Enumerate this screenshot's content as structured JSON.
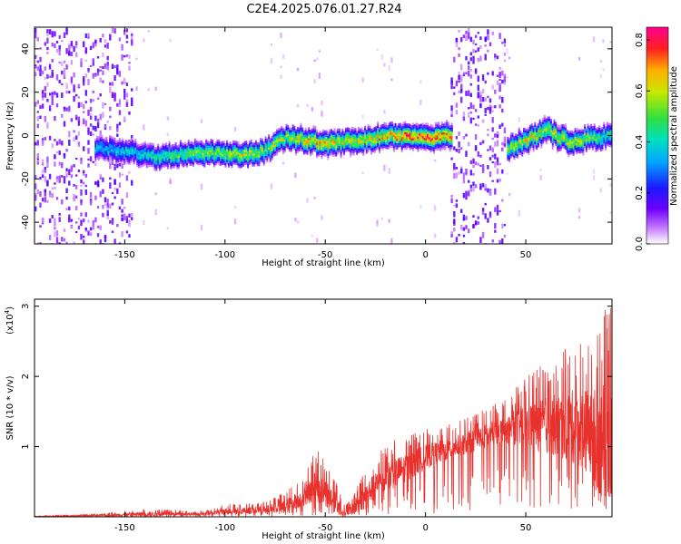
{
  "title": "C2E4.2025.076.01.27.R24",
  "chart_data": [
    {
      "type": "heatmap",
      "xlabel": "Height of straight line (km)",
      "ylabel": "Frequency (Hz)",
      "xlim": [
        -195,
        93
      ],
      "ylim": [
        -50,
        50
      ],
      "xticks": [
        -150,
        -100,
        -50,
        0,
        50
      ],
      "yticks": [
        -40,
        -20,
        0,
        20,
        40
      ],
      "colorbar": {
        "label": "Normalized spectral amplitude",
        "range": [
          0.0,
          0.85
        ],
        "ticks": [
          0.0,
          0.2,
          0.4,
          0.6,
          0.8
        ]
      },
      "ridge": {
        "x": [
          -165,
          -150,
          -145,
          -135,
          -125,
          -115,
          -100,
          -90,
          -80,
          -75,
          -70,
          -60,
          -50,
          -40,
          -30,
          -20,
          -10,
          0,
          10,
          13,
          40,
          45,
          50,
          55,
          60,
          65,
          70,
          75,
          80,
          85,
          90
        ],
        "freq": [
          -6,
          -7,
          -8,
          -10,
          -9,
          -8,
          -8,
          -9,
          -7,
          -4,
          -1,
          -2,
          -4,
          -3,
          -2,
          0,
          0,
          -1,
          0,
          0,
          -6,
          -4,
          -2,
          0,
          3,
          0,
          -2,
          -3,
          -1,
          -1,
          0
        ],
        "peak_amplitude": [
          0.35,
          0.4,
          0.38,
          0.45,
          0.5,
          0.55,
          0.58,
          0.62,
          0.55,
          0.6,
          0.58,
          0.65,
          0.7,
          0.62,
          0.68,
          0.7,
          0.75,
          0.8,
          0.72,
          0.7,
          0.55,
          0.6,
          0.65,
          0.62,
          0.6,
          0.6,
          0.62,
          0.6,
          0.58,
          0.5,
          0.45
        ]
      },
      "broadband_noise_regions_km": [
        [
          -195,
          -147
        ],
        [
          12,
          40
        ]
      ],
      "grid": false
    },
    {
      "type": "line",
      "xlabel": "Height of straight line (km)",
      "ylabel": "SNR (10 * v/v)",
      "y_multiplier": "(x10",
      "y_multiplier_exp": "4",
      "y_multiplier_close": ")",
      "xlim": [
        -195,
        93
      ],
      "ylim": [
        0,
        3.1
      ],
      "xticks": [
        -150,
        -100,
        -50,
        0,
        50
      ],
      "yticks": [
        1,
        2,
        3
      ],
      "series": [
        {
          "color": "#e8302c",
          "envelope": {
            "x": [
              -195,
              -160,
              -140,
              -110,
              -100,
              -80,
              -70,
              -60,
              -55,
              -50,
              -45,
              -40,
              -35,
              -30,
              -25,
              -20,
              -10,
              0,
              10,
              20,
              30,
              40,
              50,
              60,
              70,
              80,
              85,
              90,
              93
            ],
            "ymax": [
              0.01,
              0.05,
              0.12,
              0.08,
              0.18,
              0.22,
              0.35,
              0.6,
              1.0,
              0.8,
              0.55,
              0.15,
              0.4,
              0.7,
              0.85,
              1.05,
              1.15,
              1.25,
              1.3,
              1.4,
              1.55,
              1.7,
              2.0,
              2.2,
              2.4,
              2.55,
              2.7,
              3.05,
              3.0
            ],
            "ymid": [
              0.005,
              0.02,
              0.04,
              0.04,
              0.08,
              0.1,
              0.15,
              0.3,
              0.45,
              0.35,
              0.2,
              0.05,
              0.15,
              0.3,
              0.45,
              0.55,
              0.7,
              0.85,
              0.95,
              1.05,
              1.15,
              1.25,
              1.3,
              1.3,
              1.3,
              1.25,
              1.15,
              1.0,
              1.0
            ]
          }
        }
      ],
      "grid": false
    }
  ],
  "colors": {
    "snr_line": "#e8302c",
    "axis": "#000000"
  }
}
